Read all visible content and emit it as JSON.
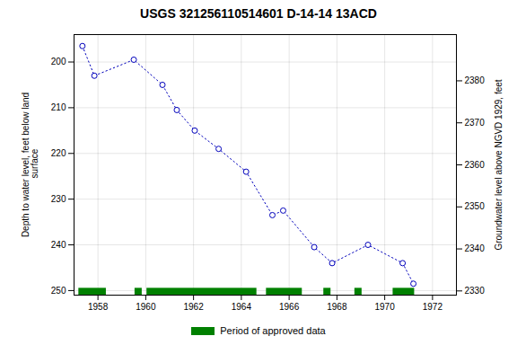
{
  "chart_data": {
    "type": "line",
    "title": "USGS 321256110514601 D-14-14 13ACD",
    "ylabel": "Depth to water level, feet below land\n surface",
    "y2label": "Groundwater level above NGVD 1929, feet",
    "x": [
      1957.35,
      1957.85,
      1959.5,
      1960.7,
      1961.3,
      1962.05,
      1963.05,
      1964.2,
      1965.3,
      1965.75,
      1967.05,
      1967.8,
      1969.3,
      1970.75,
      1971.2
    ],
    "series": [
      {
        "values": [
          196.5,
          203.0,
          199.5,
          205.0,
          210.5,
          215.0,
          219.0,
          224.0,
          233.5,
          232.5,
          240.5,
          244.0,
          240.0,
          244.0,
          248.5
        ],
        "color": "#0000bb",
        "marker": "circle",
        "line_style": "dotted"
      }
    ],
    "approved_periods": {
      "name": "Period of approved data",
      "color": "#008000",
      "y1": 251,
      "y2": 249.5,
      "ranges": [
        [
          1957.2,
          1958.35
        ],
        [
          1959.55,
          1959.85
        ],
        [
          1960.05,
          1964.65
        ],
        [
          1965.05,
          1966.55
        ],
        [
          1967.45,
          1967.75
        ],
        [
          1968.75,
          1969.05
        ],
        [
          1970.35,
          1971.25
        ]
      ]
    },
    "xlim": [
      1957,
      1973
    ],
    "xticks": [
      1958,
      1960,
      1962,
      1964,
      1966,
      1968,
      1970,
      1972
    ],
    "ylim": [
      251,
      194
    ],
    "yticks": [
      200,
      210,
      220,
      230,
      240,
      250
    ],
    "y2lim": [
      2329,
      2391
    ],
    "y2ticks": [
      2380,
      2370,
      2360,
      2350,
      2340,
      2330
    ],
    "grid": true,
    "legend": "bottom"
  }
}
